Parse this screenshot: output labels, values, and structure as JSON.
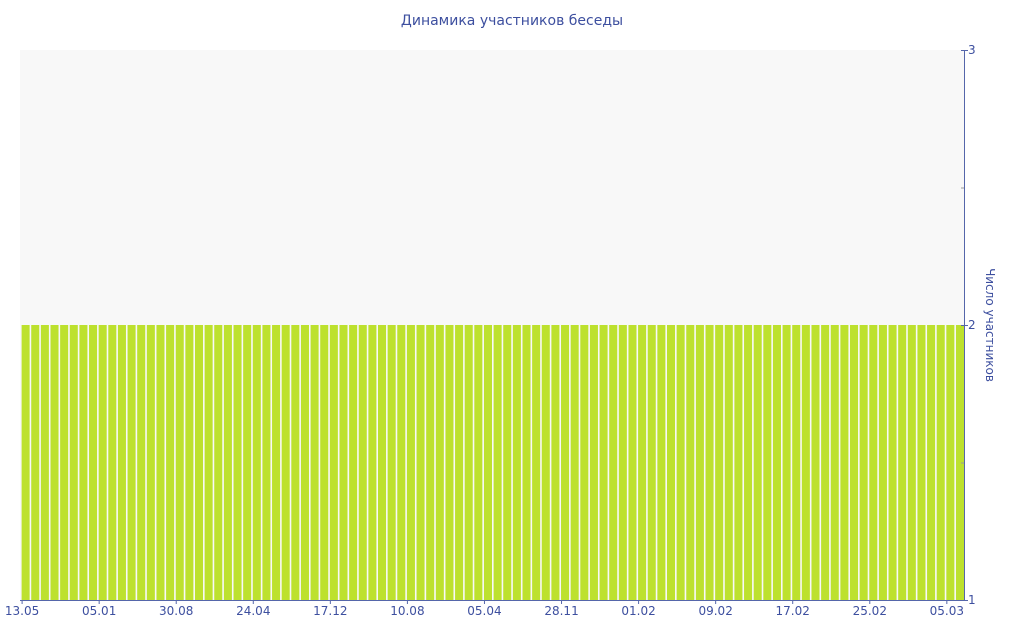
{
  "chart_data": {
    "type": "bar",
    "title": "Динамика участников беседы",
    "xlabel": "",
    "ylabel": "Число участников",
    "ylim": [
      1,
      3
    ],
    "yticks": [
      1,
      2,
      3
    ],
    "y_axis_position": "right",
    "grid": false,
    "x_tick_labels": [
      "13.05",
      "05.01",
      "30.08",
      "24.04",
      "17.12",
      "10.08",
      "05.04",
      "28.11",
      "01.02",
      "09.02",
      "17.02",
      "25.02",
      "05.03"
    ],
    "x_tick_every": 8,
    "values": [
      2,
      2,
      2,
      2,
      2,
      2,
      2,
      2,
      2,
      2,
      2,
      2,
      2,
      2,
      2,
      2,
      2,
      2,
      2,
      2,
      2,
      2,
      2,
      2,
      2,
      2,
      2,
      2,
      2,
      2,
      2,
      2,
      2,
      2,
      2,
      2,
      2,
      2,
      2,
      2,
      2,
      2,
      2,
      2,
      2,
      2,
      2,
      2,
      2,
      2,
      2,
      2,
      2,
      2,
      2,
      2,
      2,
      2,
      2,
      2,
      2,
      2,
      2,
      2,
      2,
      2,
      2,
      2,
      2,
      2,
      2,
      2,
      2,
      2,
      2,
      2,
      2,
      2,
      2,
      2,
      2,
      2,
      2,
      2,
      2,
      2,
      2,
      2,
      2,
      2,
      2,
      2,
      2,
      2,
      2,
      2,
      2,
      2
    ],
    "colors": {
      "bar": "#bde12d",
      "plot_background": "#f8f8f8",
      "axis": "#5566aa",
      "text": "#3d4f9f"
    }
  }
}
